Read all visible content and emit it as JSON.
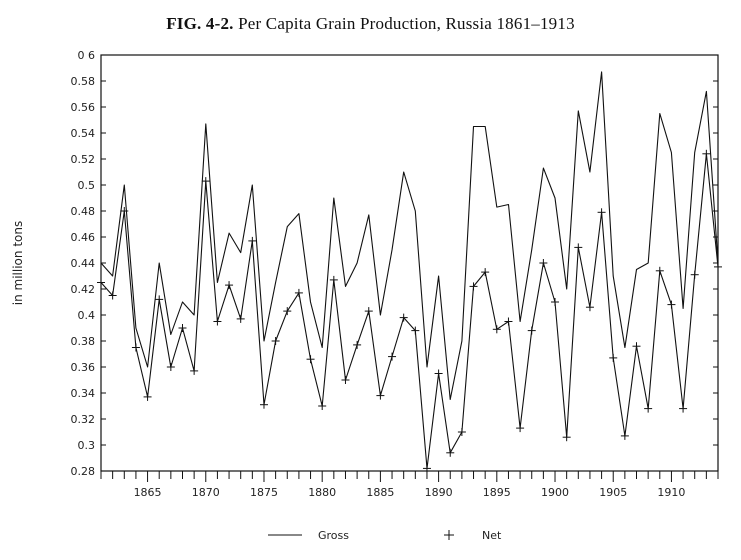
{
  "figure": {
    "label": "FIG. 4-2.",
    "caption": "Per Capita Grain Production, Russia 1861–1913"
  },
  "chart_data": {
    "type": "line",
    "title": "FIG. 4-2. Per Capita Grain Production, Russia 1861–1913",
    "xlabel": "",
    "ylabel": "in million tons",
    "xlim": [
      1861,
      1914
    ],
    "ylim": [
      0.28,
      0.6
    ],
    "x_ticks": [
      1865,
      1870,
      1875,
      1880,
      1885,
      1890,
      1895,
      1900,
      1905,
      1910
    ],
    "y_ticks": [
      0.28,
      0.3,
      0.32,
      0.34,
      0.36,
      0.38,
      0.4,
      0.42,
      0.44,
      0.46,
      0.48,
      0.5,
      0.52,
      0.54,
      0.56,
      0.58,
      0.6
    ],
    "y_tick_labels": [
      "0.28",
      "0.3",
      "0.32",
      "0.34",
      "0.36",
      "0.38",
      "0.4",
      "0.42",
      "0.44",
      "0.46",
      "0.48",
      "0.5",
      "0.52",
      "0.54",
      "0.56",
      "0.58",
      "0 6"
    ],
    "legend": {
      "position": "bottom",
      "entries": [
        "Gross",
        "Net"
      ]
    },
    "x": [
      1861,
      1862,
      1863,
      1864,
      1865,
      1866,
      1867,
      1868,
      1869,
      1870,
      1871,
      1872,
      1873,
      1874,
      1875,
      1876,
      1877,
      1878,
      1879,
      1880,
      1881,
      1882,
      1883,
      1884,
      1885,
      1886,
      1887,
      1888,
      1889,
      1890,
      1891,
      1892,
      1893,
      1894,
      1895,
      1896,
      1897,
      1898,
      1899,
      1900,
      1901,
      1902,
      1903,
      1904,
      1905,
      1906,
      1907,
      1908,
      1909,
      1910,
      1911,
      1912,
      1913,
      1914
    ],
    "series": [
      {
        "name": "Gross",
        "marker": "line",
        "values": [
          0.44,
          0.43,
          0.5,
          0.39,
          0.36,
          0.44,
          0.385,
          0.41,
          0.4,
          0.547,
          0.425,
          0.463,
          0.448,
          0.5,
          0.38,
          0.425,
          0.468,
          0.478,
          0.41,
          0.375,
          0.49,
          0.422,
          0.44,
          0.477,
          0.4,
          0.45,
          0.51,
          0.48,
          0.36,
          0.43,
          0.335,
          0.38,
          0.545,
          0.545,
          0.483,
          0.485,
          0.395,
          0.45,
          0.513,
          0.49,
          0.42,
          0.557,
          0.51,
          0.587,
          0.43,
          0.375,
          0.435,
          0.44,
          0.555,
          0.525,
          0.405,
          0.525,
          0.572,
          0.44
        ]
      },
      {
        "name": "Net",
        "marker": "plus",
        "values": [
          0.425,
          0.415,
          0.48,
          0.375,
          0.337,
          0.412,
          0.36,
          0.39,
          0.357,
          0.503,
          0.395,
          0.423,
          0.397,
          0.457,
          0.331,
          0.38,
          0.403,
          0.417,
          0.366,
          0.33,
          0.427,
          0.35,
          0.377,
          0.403,
          0.338,
          0.368,
          0.398,
          0.388,
          0.282,
          0.355,
          0.294,
          0.31,
          0.422,
          0.433,
          0.389,
          0.395,
          0.313,
          0.388,
          0.44,
          0.41,
          0.306,
          0.452,
          0.406,
          0.479,
          0.367,
          0.307,
          0.376,
          0.328,
          0.434,
          0.408,
          0.328,
          0.431,
          0.524,
          0.437
        ]
      }
    ]
  }
}
